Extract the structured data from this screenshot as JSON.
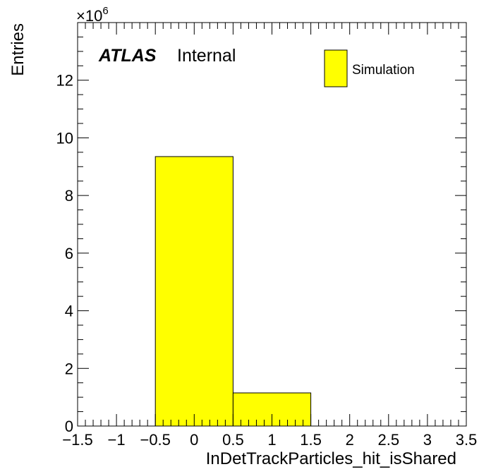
{
  "chart_data": {
    "type": "bar",
    "xlabel": "InDetTrackParticles_hit_isShared",
    "ylabel": "Entries",
    "xlim": [
      -1.5,
      3.5
    ],
    "ylim": [
      0,
      14
    ],
    "y_multiplier_base": "×10",
    "y_multiplier_exp": "6",
    "x_ticks": [
      "−1.5",
      "−1",
      "−0.5",
      "0",
      "0.5",
      "1",
      "1.5",
      "2",
      "2.5",
      "3",
      "3.5"
    ],
    "x_tick_values": [
      -1.5,
      -1,
      -0.5,
      0,
      0.5,
      1,
      1.5,
      2,
      2.5,
      3,
      3.5
    ],
    "y_ticks": [
      "0",
      "2",
      "4",
      "6",
      "8",
      "10",
      "12"
    ],
    "y_tick_values": [
      0,
      2,
      4,
      6,
      8,
      10,
      12
    ],
    "bins": [
      {
        "low": -0.5,
        "high": 0.5,
        "value": 9.35
      },
      {
        "low": 0.5,
        "high": 1.5,
        "value": 1.15
      }
    ],
    "series": [
      {
        "name": "Simulation",
        "color": "#ffff00"
      }
    ],
    "legend_position": "top-right"
  },
  "labels": {
    "atlas": "ATLAS",
    "internal": "Internal"
  }
}
